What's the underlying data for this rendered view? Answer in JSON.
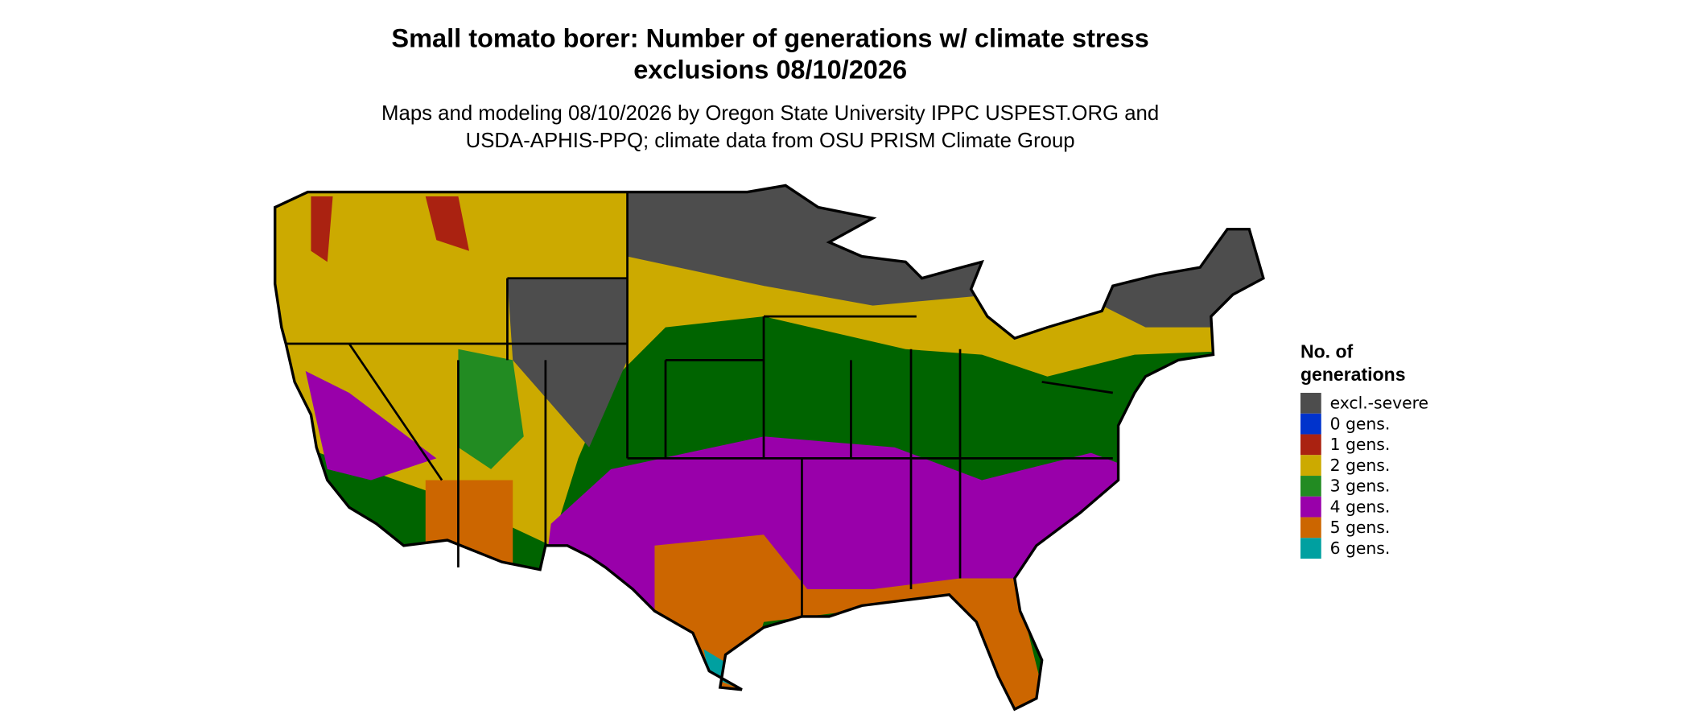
{
  "header": {
    "title_lines": [
      "Small tomato borer: Number of generations w/ climate stress",
      "exclusions 08/10/2026"
    ],
    "subtitle_lines": [
      "Maps and modeling 08/10/2026 by Oregon State University IPPC USPEST.ORG and",
      "USDA-APHIS-PPQ; climate data from OSU PRISM Climate Group"
    ]
  },
  "legend": {
    "title_lines": [
      "No. of",
      "generations"
    ],
    "items": [
      {
        "label": "excl.-severe",
        "color": "#4d4d4d"
      },
      {
        "label": "0 gens.",
        "color": "#0033cc"
      },
      {
        "label": "1 gens.",
        "color": "#aa2211"
      },
      {
        "label": "2 gens.",
        "color": "#ccaa00"
      },
      {
        "label": "3 gens.",
        "color": "#228b22"
      },
      {
        "label": "4 gens.",
        "color": "#9900aa"
      },
      {
        "label": "5 gens.",
        "color": "#cc6600"
      },
      {
        "label": "6 gens.",
        "color": "#00a0a0"
      }
    ]
  }
}
